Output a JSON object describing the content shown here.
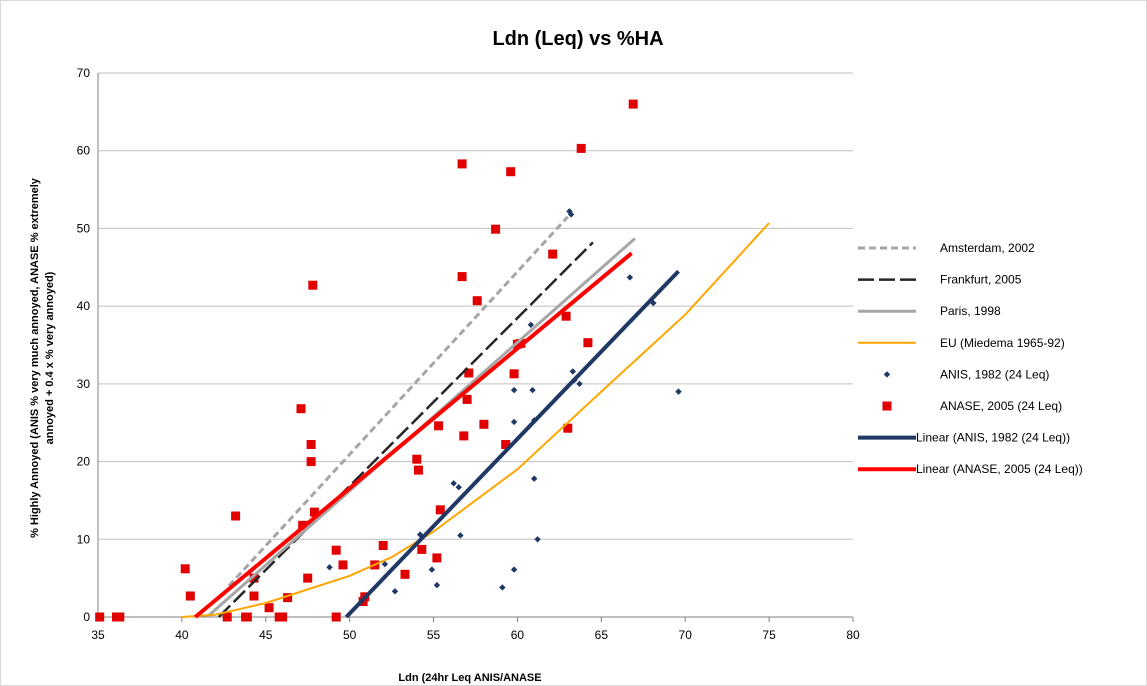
{
  "chart_data": {
    "type": "scatter",
    "title": "Ldn (Leq) vs %HA",
    "xlabel": "Ldn (24hr Leq ANIS/ANASE",
    "ylabel_line1": "% Highly Annoyed (ANIS % very much annoyed, ANASE % extremely",
    "ylabel_line2": "annoyed + 0.4 x % very annoyed)",
    "xlim": [
      35,
      80
    ],
    "ylim": [
      0,
      70
    ],
    "x_ticks": [
      "35",
      "40",
      "45",
      "50",
      "55",
      "60",
      "65",
      "70",
      "75",
      "80"
    ],
    "y_ticks": [
      "0",
      "10",
      "20",
      "30",
      "40",
      "50",
      "60",
      "70"
    ],
    "grid": "horizontal",
    "legend_position": "right",
    "series": [
      {
        "name": "Amsterdam, 2002",
        "kind": "line",
        "style": "dotted",
        "color": "#a6a6a6",
        "points": [
          [
            42.8,
            4
          ],
          [
            63,
            51.5
          ]
        ]
      },
      {
        "name": "Frankfurt, 2005",
        "kind": "line",
        "style": "dashed",
        "color": "#262626",
        "points": [
          [
            42.2,
            0
          ],
          [
            64.5,
            48.2
          ]
        ]
      },
      {
        "name": "Paris, 1998",
        "kind": "line",
        "style": "solid",
        "color": "#a6a6a6",
        "points": [
          [
            41.5,
            0
          ],
          [
            67,
            48.7
          ]
        ]
      },
      {
        "name": "EU (Miedema 1965-92)",
        "kind": "line",
        "style": "solid",
        "color": "#ffa500",
        "points": [
          [
            40,
            0
          ],
          [
            42,
            0.3
          ],
          [
            45,
            1.8
          ],
          [
            50,
            5.3
          ],
          [
            52.5,
            7.7
          ],
          [
            55,
            11
          ],
          [
            60,
            19
          ],
          [
            65,
            29
          ],
          [
            70,
            38.9
          ],
          [
            75,
            50.7
          ]
        ]
      },
      {
        "name": "ANIS, 1982 (24 Leq)",
        "kind": "scatter",
        "marker": "diamond",
        "color": "#1f3864",
        "points": [
          [
            48.8,
            6.4
          ],
          [
            52.1,
            6.8
          ],
          [
            52.7,
            3.3
          ],
          [
            54.2,
            10.6
          ],
          [
            54.9,
            6.1
          ],
          [
            55.2,
            4.1
          ],
          [
            56.2,
            17.2
          ],
          [
            56.5,
            16.7
          ],
          [
            56.6,
            10.5
          ],
          [
            59.1,
            3.8
          ],
          [
            59.8,
            25.1
          ],
          [
            59.8,
            29.2
          ],
          [
            59.8,
            6.1
          ],
          [
            60.8,
            37.6
          ],
          [
            60.9,
            29.2
          ],
          [
            61.0,
            25.3
          ],
          [
            61.0,
            17.8
          ],
          [
            61.2,
            10.0
          ],
          [
            63.1,
            52.2
          ],
          [
            63.2,
            51.8
          ],
          [
            63.3,
            31.6
          ],
          [
            63.4,
            30.5
          ],
          [
            63.7,
            30.0
          ],
          [
            66.7,
            43.7
          ],
          [
            68.1,
            40.4
          ],
          [
            69.6,
            29.0
          ]
        ]
      },
      {
        "name": "ANASE, 2005 (24 Leq)",
        "kind": "scatter",
        "marker": "square",
        "color": "#e00000",
        "points": [
          [
            35.1,
            0
          ],
          [
            36.1,
            0
          ],
          [
            36.3,
            0
          ],
          [
            40.2,
            6.2
          ],
          [
            40.5,
            2.7
          ],
          [
            42.7,
            0
          ],
          [
            43.2,
            13.0
          ],
          [
            43.8,
            0
          ],
          [
            43.9,
            0
          ],
          [
            44.3,
            5.0
          ],
          [
            44.3,
            2.7
          ],
          [
            45.2,
            1.2
          ],
          [
            45.8,
            0
          ],
          [
            46.0,
            0
          ],
          [
            46.3,
            2.5
          ],
          [
            47.1,
            26.8
          ],
          [
            47.2,
            11.8
          ],
          [
            47.5,
            5.0
          ],
          [
            47.7,
            22.2
          ],
          [
            47.7,
            20.0
          ],
          [
            47.8,
            42.7
          ],
          [
            47.9,
            13.5
          ],
          [
            49.2,
            8.6
          ],
          [
            49.2,
            0
          ],
          [
            49.6,
            6.7
          ],
          [
            50.8,
            2.0
          ],
          [
            50.9,
            2.6
          ],
          [
            51.5,
            6.7
          ],
          [
            52.0,
            9.2
          ],
          [
            53.3,
            5.5
          ],
          [
            54.0,
            20.3
          ],
          [
            54.1,
            18.9
          ],
          [
            54.3,
            8.7
          ],
          [
            55.2,
            7.6
          ],
          [
            55.3,
            24.6
          ],
          [
            55.4,
            13.8
          ],
          [
            56.7,
            58.3
          ],
          [
            56.7,
            43.8
          ],
          [
            56.8,
            23.3
          ],
          [
            57.0,
            28.0
          ],
          [
            57.1,
            31.4
          ],
          [
            57.6,
            40.7
          ],
          [
            58.0,
            24.8
          ],
          [
            58.7,
            49.9
          ],
          [
            59.3,
            22.2
          ],
          [
            59.6,
            57.3
          ],
          [
            59.8,
            31.3
          ],
          [
            60.0,
            35.1
          ],
          [
            60.2,
            35.2
          ],
          [
            62.1,
            46.7
          ],
          [
            62.9,
            38.7
          ],
          [
            63.0,
            24.3
          ],
          [
            63.8,
            60.3
          ],
          [
            64.2,
            35.3
          ],
          [
            66.9,
            66.0
          ]
        ]
      },
      {
        "name": "Linear (ANIS, 1982 (24 Leq))",
        "kind": "line",
        "style": "solid",
        "color": "#1f3864",
        "points": [
          [
            49.8,
            0
          ],
          [
            69.6,
            44.5
          ]
        ]
      },
      {
        "name": "Linear (ANASE, 2005 (24 Leq))",
        "kind": "line",
        "style": "solid",
        "color": "#ff0000",
        "points": [
          [
            40.8,
            0
          ],
          [
            66.8,
            46.8
          ]
        ]
      }
    ]
  }
}
